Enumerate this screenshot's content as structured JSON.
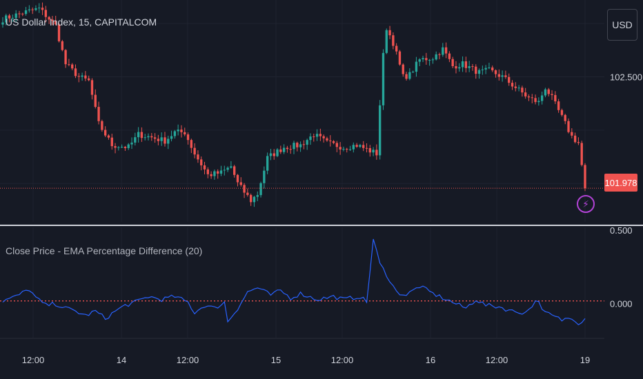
{
  "header": {
    "title": "US Dollar Index, 15, CAPITALCOM",
    "currency_button": "USD"
  },
  "indicator": {
    "title": "Close Price - EMA Percentage Difference (20)"
  },
  "price_axis": {
    "labels": [
      {
        "value": 102.5,
        "text": "102.500"
      }
    ],
    "last_price": {
      "value": 101.978,
      "text": "101.978"
    }
  },
  "indicator_axis": {
    "labels": [
      {
        "value": 0.5,
        "text": "0.500"
      },
      {
        "value": 0.0,
        "text": "0.000"
      }
    ]
  },
  "time_axis": {
    "labels": [
      "12:00",
      "14",
      "12:00",
      "15",
      "12:00",
      "16",
      "12:00",
      "19"
    ]
  },
  "icons": {
    "alert": "lightning-bolt-icon"
  },
  "colors": {
    "background": "#161a25",
    "bull": "#26a69a",
    "bear": "#ef5350",
    "indicator_line": "#2962ff",
    "zero_line": "#f05350",
    "alert_ring": "#b243d6"
  },
  "chart_data": [
    {
      "type": "candlestick",
      "title": "US Dollar Index, 15, CAPITALCOM",
      "ylim": [
        101.82,
        102.86
      ],
      "x_ticks": [
        "12:00",
        "14",
        "12:00",
        "15",
        "12:00",
        "16",
        "12:00",
        "19"
      ],
      "y_ticks": [
        102.5
      ],
      "last_price": 101.978,
      "close_path": [
        [
          0,
          102.77
        ],
        [
          6,
          102.8
        ],
        [
          11,
          102.82
        ],
        [
          16,
          102.74
        ],
        [
          19,
          102.56
        ],
        [
          23,
          102.5
        ],
        [
          26,
          102.48
        ],
        [
          29,
          102.28
        ],
        [
          33,
          102.18
        ],
        [
          38,
          102.17
        ],
        [
          41,
          102.23
        ],
        [
          44,
          102.22
        ],
        [
          49,
          102.2
        ],
        [
          52,
          102.24
        ],
        [
          55,
          102.24
        ],
        [
          58,
          102.14
        ],
        [
          62,
          102.04
        ],
        [
          66,
          102.05
        ],
        [
          69,
          102.08
        ],
        [
          71,
          102.0
        ],
        [
          73,
          101.96
        ],
        [
          75,
          101.92
        ],
        [
          77,
          101.95
        ],
        [
          80,
          102.12
        ],
        [
          85,
          102.17
        ],
        [
          90,
          102.18
        ],
        [
          94,
          102.23
        ],
        [
          98,
          102.19
        ],
        [
          103,
          102.17
        ],
        [
          107,
          102.18
        ],
        [
          110,
          102.16
        ],
        [
          113,
          102.14
        ],
        [
          115,
          102.6
        ],
        [
          116,
          102.73
        ],
        [
          118,
          102.66
        ],
        [
          121,
          102.5
        ],
        [
          123,
          102.51
        ],
        [
          126,
          102.58
        ],
        [
          130,
          102.59
        ],
        [
          133,
          102.63
        ],
        [
          136,
          102.55
        ],
        [
          139,
          102.56
        ],
        [
          144,
          102.52
        ],
        [
          147,
          102.53
        ],
        [
          151,
          102.5
        ],
        [
          155,
          102.45
        ],
        [
          159,
          102.4
        ],
        [
          162,
          102.38
        ],
        [
          164,
          102.45
        ],
        [
          166,
          102.4
        ],
        [
          169,
          102.31
        ],
        [
          172,
          102.22
        ],
        [
          174,
          102.19
        ],
        [
          176,
          101.98
        ]
      ]
    },
    {
      "type": "line",
      "title": "Close Price - EMA Percentage Difference (20)",
      "ylim": [
        -0.25,
        0.5
      ],
      "y_ticks": [
        0.5,
        0.0
      ],
      "reference_line": 0.0,
      "series": [
        {
          "values": [
            [
              0,
              0.0
            ],
            [
              4,
              0.03
            ],
            [
              8,
              0.08
            ],
            [
              10,
              0.02
            ],
            [
              13,
              -0.03
            ],
            [
              16,
              -0.02
            ],
            [
              19,
              -0.05
            ],
            [
              22,
              -0.07
            ],
            [
              25,
              -0.1
            ],
            [
              28,
              -0.07
            ],
            [
              31,
              -0.12
            ],
            [
              34,
              -0.07
            ],
            [
              37,
              -0.03
            ],
            [
              40,
              -0.01
            ],
            [
              44,
              0.03
            ],
            [
              48,
              0.01
            ],
            [
              52,
              0.03
            ],
            [
              56,
              -0.01
            ],
            [
              58,
              -0.08
            ],
            [
              61,
              -0.03
            ],
            [
              64,
              -0.05
            ],
            [
              67,
              -0.01
            ],
            [
              68,
              -0.14
            ],
            [
              71,
              -0.05
            ],
            [
              74,
              0.06
            ],
            [
              77,
              0.09
            ],
            [
              81,
              0.04
            ],
            [
              84,
              0.07
            ],
            [
              87,
              0.02
            ],
            [
              90,
              0.05
            ],
            [
              95,
              0.01
            ],
            [
              100,
              0.03
            ],
            [
              103,
              0.01
            ],
            [
              108,
              0.03
            ],
            [
              110,
              -0.01
            ],
            [
              112,
              0.42
            ],
            [
              114,
              0.25
            ],
            [
              116,
              0.18
            ],
            [
              119,
              0.06
            ],
            [
              122,
              0.04
            ],
            [
              126,
              0.1
            ],
            [
              130,
              0.05
            ],
            [
              133,
              0.02
            ],
            [
              137,
              -0.02
            ],
            [
              140,
              -0.05
            ],
            [
              143,
              0.01
            ],
            [
              146,
              -0.03
            ],
            [
              150,
              -0.04
            ],
            [
              154,
              -0.07
            ],
            [
              158,
              -0.08
            ],
            [
              160,
              -0.03
            ],
            [
              162,
              0.01
            ],
            [
              163,
              -0.07
            ],
            [
              166,
              -0.1
            ],
            [
              169,
              -0.13
            ],
            [
              172,
              -0.11
            ],
            [
              174,
              -0.15
            ],
            [
              176,
              -0.12
            ]
          ]
        }
      ]
    }
  ]
}
